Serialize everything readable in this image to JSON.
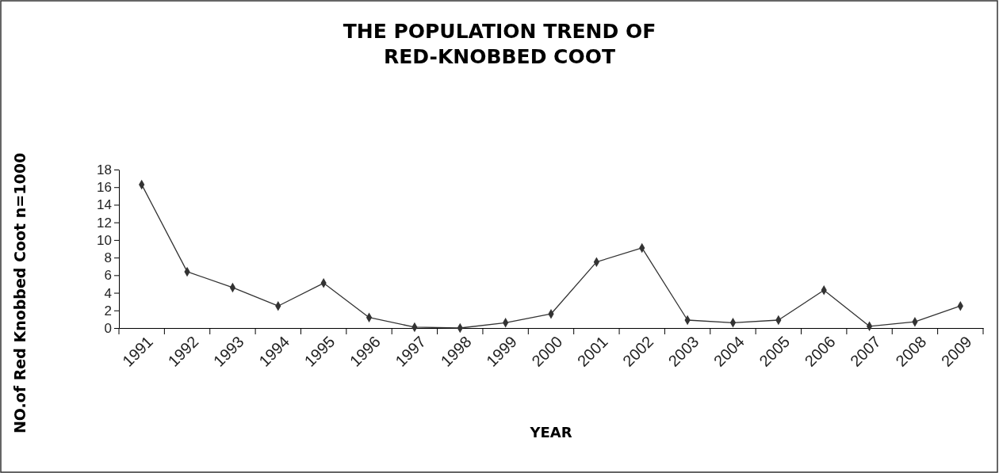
{
  "chart_data": {
    "type": "line",
    "title": "THE POPULATION TREND OF\nRED-KNOBBED COOT",
    "xlabel": "YEAR",
    "ylabel": "NO.of Red Knobbed Coot n=1000",
    "categories": [
      "1991",
      "1992",
      "1993",
      "1994",
      "1995",
      "1996",
      "1997",
      "1998",
      "1999",
      "2000",
      "2001",
      "2002",
      "2003",
      "2004",
      "2005",
      "2006",
      "2007",
      "2008",
      "2009"
    ],
    "series": [
      {
        "color": "#333333",
        "values": [
          16.3,
          6.4,
          4.6,
          2.5,
          5.1,
          1.2,
          0.1,
          0,
          0.6,
          1.6,
          7.5,
          9.1,
          0.9,
          0.6,
          0.9,
          4.3,
          0.2,
          0.7,
          2.5
        ]
      }
    ],
    "ylim": [
      0,
      18
    ],
    "yticks": [
      0,
      2,
      4,
      6,
      8,
      10,
      12,
      14,
      16,
      18
    ],
    "marker": "diamond",
    "line_style": "solid"
  }
}
